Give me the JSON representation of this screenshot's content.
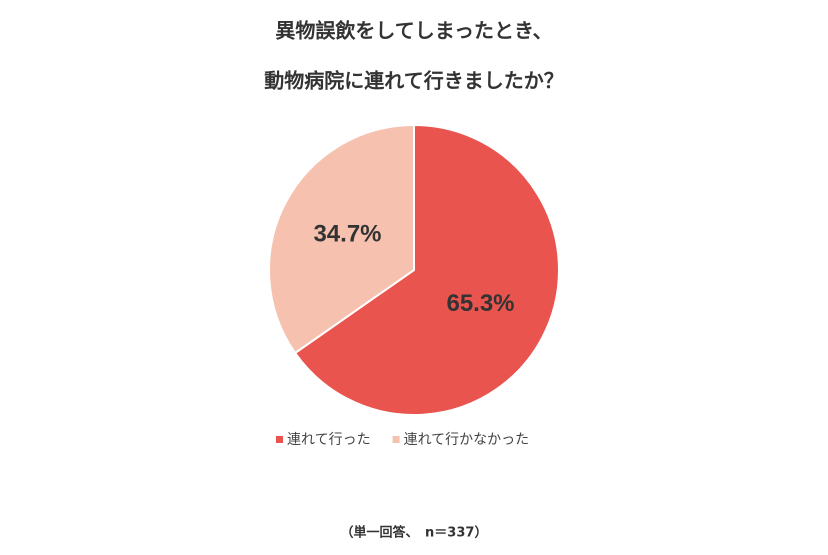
{
  "chart_data": {
    "type": "pie",
    "title": [
      "異物誤飲をしてしまったとき、",
      "動物病院に連れて行きましたか？"
    ],
    "categories": [
      "連れて行った",
      "連れて行かなかった"
    ],
    "values": [
      65.3,
      34.7
    ],
    "value_labels": [
      "65.3%",
      "34.7%"
    ],
    "colors": [
      "#e9544f",
      "#f6c1ae"
    ],
    "note": "（単一回答、　n＝337）"
  }
}
